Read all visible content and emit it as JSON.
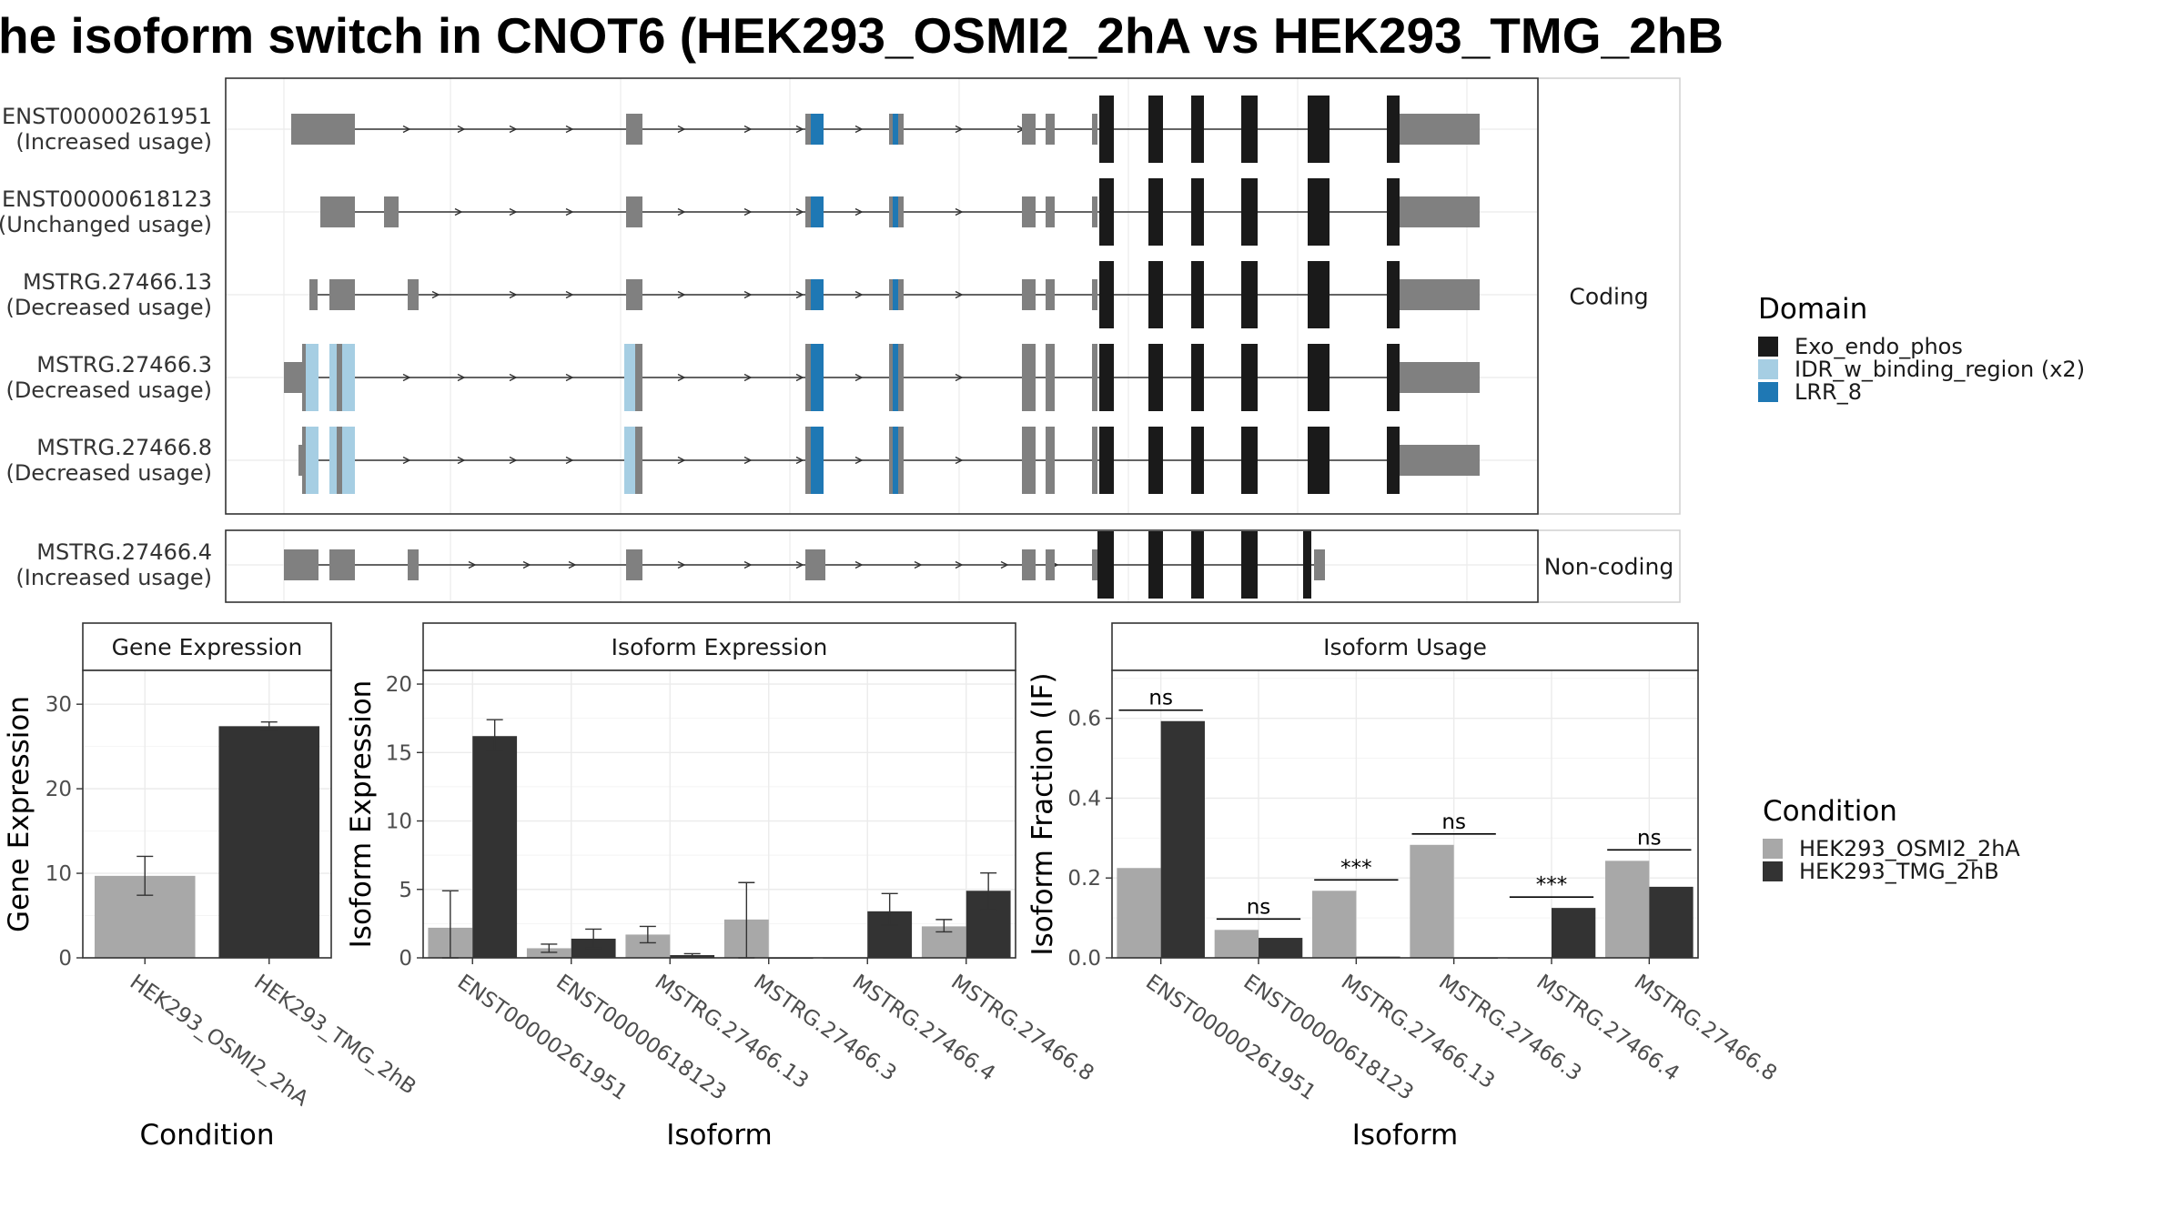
{
  "title": "he isoform switch in CNOT6 (HEK293_OSMI2_2hA vs HEK293_TMG_2hB",
  "colors": {
    "utr": "#808080",
    "exo_endo_phos": "#1a1a1a",
    "idr": "#a6cee3",
    "lrr": "#1f78b4",
    "condition_a": "#a8a8a8",
    "condition_b": "#333333"
  },
  "structure": {
    "coding_strip": "Coding",
    "noncoding_strip": "Non-coding",
    "isoforms": [
      {
        "id": "ENST00000261951",
        "usage": "(Increased usage)",
        "group": "coding"
      },
      {
        "id": "ENST00000618123",
        "usage": "(Unchanged usage)",
        "group": "coding"
      },
      {
        "id": "MSTRG.27466.13",
        "usage": "(Decreased usage)",
        "group": "coding"
      },
      {
        "id": "MSTRG.27466.3",
        "usage": "(Decreased usage)",
        "group": "coding"
      },
      {
        "id": "MSTRG.27466.8",
        "usage": "(Decreased usage)",
        "group": "coding"
      },
      {
        "id": "MSTRG.27466.4",
        "usage": "(Increased usage)",
        "group": "noncoding"
      }
    ]
  },
  "domain_legend": {
    "title": "Domain",
    "items": [
      {
        "label": "Exo_endo_phos",
        "color": "#1a1a1a"
      },
      {
        "label": "IDR_w_binding_region (x2)",
        "color": "#a6cee3"
      },
      {
        "label": "LRR_8",
        "color": "#1f78b4"
      }
    ]
  },
  "condition_legend": {
    "title": "Condition",
    "items": [
      {
        "label": "HEK293_OSMI2_2hA",
        "color": "#a8a8a8"
      },
      {
        "label": "HEK293_TMG_2hB",
        "color": "#333333"
      }
    ]
  },
  "chart_data": [
    {
      "type": "bar",
      "strip": "Gene Expression",
      "xlabel": "Condition",
      "ylabel": "Gene Expression",
      "ylim": [
        0,
        34
      ],
      "yticks": [
        0,
        10,
        20,
        30
      ],
      "categories": [
        "HEK293_OSMI2_2hA",
        "HEK293_TMG_2hB"
      ],
      "values": [
        9.7,
        27.4
      ],
      "errors": [
        [
          7.4,
          12.0
        ],
        [
          26.9,
          27.9
        ]
      ]
    },
    {
      "type": "bar",
      "strip": "Isoform Expression",
      "xlabel": "Isoform",
      "ylabel": "Isoform Expression",
      "ylim": [
        0,
        21
      ],
      "yticks": [
        0,
        5,
        10,
        15,
        20
      ],
      "categories": [
        "ENST00000261951",
        "ENST00000618123",
        "MSTRG.27466.13",
        "MSTRG.27466.3",
        "MSTRG.27466.4",
        "MSTRG.27466.8"
      ],
      "series": [
        {
          "name": "HEK293_OSMI2_2hA",
          "values": [
            2.2,
            0.7,
            1.7,
            2.8,
            0.0,
            2.3
          ],
          "errors": [
            [
              0.0,
              4.9
            ],
            [
              0.4,
              1.0
            ],
            [
              1.1,
              2.3
            ],
            [
              0.0,
              5.5
            ],
            [
              0.0,
              0.0
            ],
            [
              1.9,
              2.8
            ]
          ]
        },
        {
          "name": "HEK293_TMG_2hB",
          "values": [
            16.2,
            1.4,
            0.2,
            0.0,
            3.4,
            4.9
          ],
          "errors": [
            [
              15.1,
              17.4
            ],
            [
              0.7,
              2.1
            ],
            [
              0.1,
              0.3
            ],
            [
              0.0,
              0.0
            ],
            [
              2.4,
              4.7
            ],
            [
              3.5,
              6.2
            ]
          ]
        }
      ]
    },
    {
      "type": "bar",
      "strip": "Isoform Usage",
      "xlabel": "Isoform",
      "ylabel": "Isoform Fraction (IF)",
      "ylim": [
        0,
        0.72
      ],
      "yticks": [
        "0.0",
        "0.2",
        "0.4",
        "0.6"
      ],
      "categories": [
        "ENST00000261951",
        "ENST00000618123",
        "MSTRG.27466.13",
        "MSTRG.27466.3",
        "MSTRG.27466.4",
        "MSTRG.27466.8"
      ],
      "series": [
        {
          "name": "HEK293_OSMI2_2hA",
          "values": [
            0.225,
            0.07,
            0.168,
            0.283,
            0.0,
            0.243
          ]
        },
        {
          "name": "HEK293_TMG_2hB",
          "values": [
            0.593,
            0.05,
            0.003,
            0.0,
            0.125,
            0.178
          ]
        }
      ],
      "significance": [
        "ns",
        "ns",
        "***",
        "ns",
        "***",
        "ns"
      ]
    }
  ]
}
